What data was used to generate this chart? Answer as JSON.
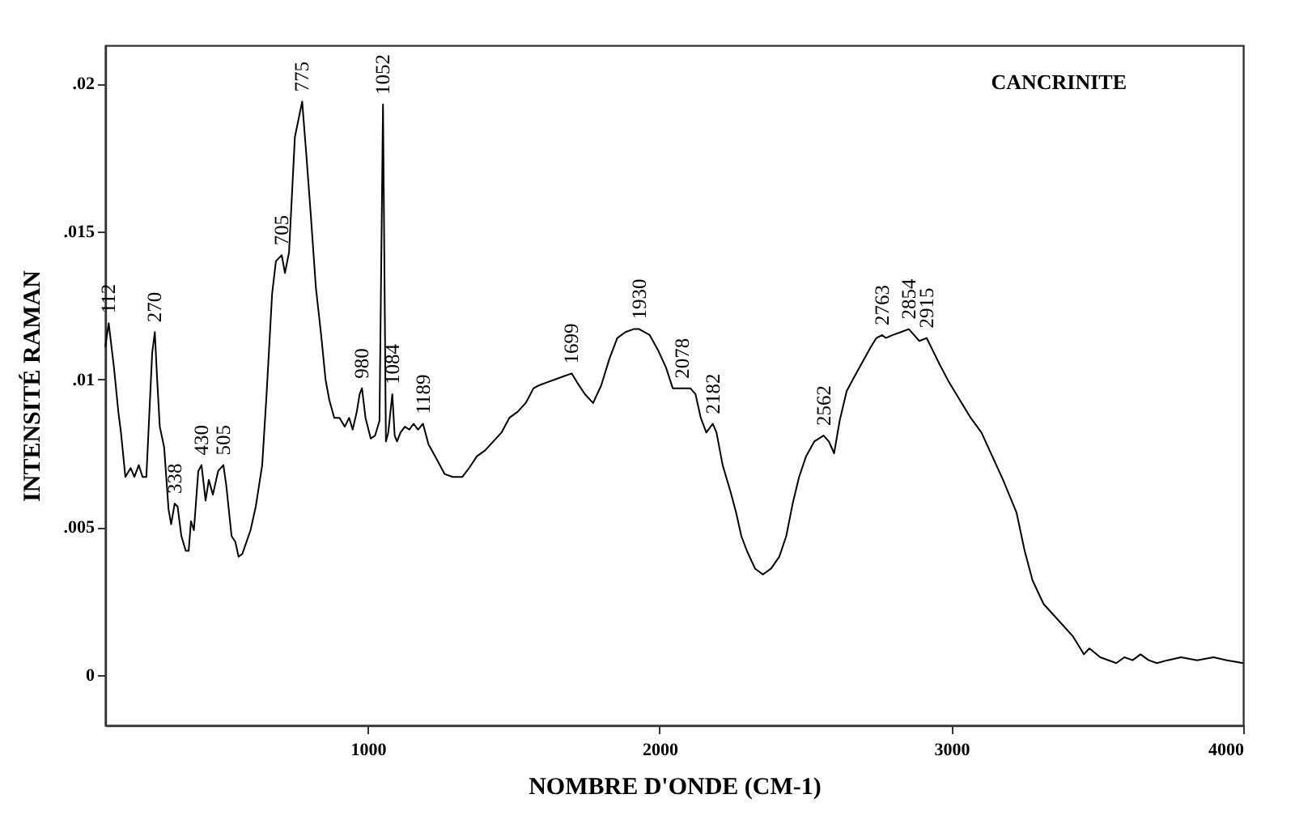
{
  "chart_data": {
    "type": "line",
    "title": "CANCRINITE",
    "xlabel": "NOMBRE D'ONDE (CM-1)",
    "ylabel": "INTENSITÉ RAMAN",
    "xlim": [
      100,
      4000
    ],
    "xticks": [
      1000,
      2000,
      3000,
      4000
    ],
    "ylim": [
      -0.0017,
      0.0213
    ],
    "yticks": [
      0,
      {
        "value": 0.005,
        "label": ".005"
      },
      {
        "value": 0.01,
        "label": ".01"
      },
      {
        "value": 0.015,
        "label": ".015"
      },
      {
        "value": 0.02,
        "label": ".02"
      }
    ],
    "grid": false,
    "x": [
      100,
      112,
      130,
      145,
      154,
      169,
      187,
      200,
      215,
      228,
      241,
      261,
      270,
      278,
      287,
      302,
      317,
      326,
      338,
      348,
      361,
      376,
      386,
      394,
      404,
      419,
      430,
      444,
      455,
      469,
      487,
      505,
      515,
      533,
      546,
      557,
      570,
      598,
      616,
      638,
      653,
      672,
      685,
      705,
      716,
      730,
      750,
      775,
      790,
      805,
      822,
      840,
      855,
      868,
      885,
      903,
      921,
      936,
      948,
      962,
      972,
      980,
      992,
      1010,
      1025,
      1040,
      1052,
      1062,
      1070,
      1084,
      1092,
      1100,
      1112,
      1127,
      1142,
      1157,
      1172,
      1189,
      1208,
      1236,
      1263,
      1291,
      1324,
      1347,
      1374,
      1402,
      1430,
      1458,
      1485,
      1513,
      1541,
      1568,
      1587,
      1614,
      1642,
      1670,
      1699,
      1717,
      1744,
      1772,
      1800,
      1828,
      1855,
      1883,
      1911,
      1930,
      1966,
      1994,
      2022,
      2045,
      2058,
      2078,
      2105,
      2123,
      2141,
      2160,
      2182,
      2195,
      2216,
      2243,
      2262,
      2280,
      2299,
      2327,
      2354,
      2382,
      2410,
      2434,
      2456,
      2478,
      2502,
      2530,
      2562,
      2580,
      2598,
      2617,
      2641,
      2668,
      2696,
      2724,
      2743,
      2763,
      2775,
      2799,
      2827,
      2854,
      2872,
      2890,
      2915,
      2935,
      2960,
      2992,
      3029,
      3066,
      3103,
      3140,
      3177,
      3223,
      3251,
      3278,
      3316,
      3362,
      3417,
      3454,
      3473,
      3510,
      3565,
      3593,
      3621,
      3648,
      3676,
      3704,
      3741,
      3787,
      3842,
      3898,
      3944,
      4000
    ],
    "series": [
      {
        "color": "#000000",
        "values": [
          0.0111,
          0.0119,
          0.0104,
          0.0089,
          0.0082,
          0.0067,
          0.007,
          0.0067,
          0.0071,
          0.0067,
          0.0067,
          0.0109,
          0.0116,
          0.01,
          0.0084,
          0.0077,
          0.0056,
          0.0051,
          0.0058,
          0.0057,
          0.0047,
          0.0042,
          0.0042,
          0.0052,
          0.0049,
          0.0069,
          0.0071,
          0.0059,
          0.0066,
          0.0061,
          0.0069,
          0.0071,
          0.0064,
          0.0047,
          0.0045,
          0.004,
          0.0041,
          0.0049,
          0.0057,
          0.0071,
          0.0095,
          0.0129,
          0.014,
          0.0142,
          0.0136,
          0.0143,
          0.0182,
          0.0194,
          0.0175,
          0.0155,
          0.0131,
          0.0115,
          0.01,
          0.0093,
          0.0087,
          0.0087,
          0.0084,
          0.0087,
          0.0083,
          0.0089,
          0.0095,
          0.0097,
          0.0087,
          0.008,
          0.0081,
          0.0086,
          0.0193,
          0.0079,
          0.0082,
          0.0095,
          0.0081,
          0.0079,
          0.0082,
          0.0084,
          0.0083,
          0.0085,
          0.0083,
          0.0085,
          0.0078,
          0.0073,
          0.0068,
          0.0067,
          0.0067,
          0.007,
          0.0074,
          0.0076,
          0.0079,
          0.0082,
          0.0087,
          0.0089,
          0.0092,
          0.0097,
          0.0098,
          0.0099,
          0.01,
          0.0101,
          0.0102,
          0.0099,
          0.0095,
          0.0092,
          0.0098,
          0.0107,
          0.0114,
          0.0116,
          0.0117,
          0.0117,
          0.0115,
          0.011,
          0.0104,
          0.0097,
          0.0097,
          0.0097,
          0.0097,
          0.0095,
          0.0087,
          0.0082,
          0.0085,
          0.0082,
          0.0071,
          0.0062,
          0.0055,
          0.0047,
          0.0042,
          0.0036,
          0.0034,
          0.0036,
          0.004,
          0.0047,
          0.0058,
          0.0067,
          0.0074,
          0.0079,
          0.0081,
          0.0079,
          0.0075,
          0.0086,
          0.0096,
          0.0101,
          0.0106,
          0.0111,
          0.0114,
          0.0115,
          0.0114,
          0.0115,
          0.0116,
          0.0117,
          0.0115,
          0.0113,
          0.0114,
          0.011,
          0.0105,
          0.0099,
          0.0093,
          0.0087,
          0.0082,
          0.0074,
          0.0066,
          0.0055,
          0.0042,
          0.0032,
          0.0024,
          0.0019,
          0.0013,
          0.0007,
          0.0009,
          0.0006,
          0.0004,
          0.0006,
          0.0005,
          0.0007,
          0.0005,
          0.0004,
          0.0005,
          0.0006,
          0.0005,
          0.0006,
          0.0005,
          0.0004
        ]
      }
    ],
    "annotations": [
      {
        "text": "112",
        "x": 112,
        "y": 0.0119
      },
      {
        "text": "270",
        "x": 270,
        "y": 0.0116
      },
      {
        "text": "338",
        "x": 338,
        "y": 0.0058
      },
      {
        "text": "430",
        "x": 430,
        "y": 0.0071
      },
      {
        "text": "505",
        "x": 505,
        "y": 0.0071
      },
      {
        "text": "705",
        "x": 705,
        "y": 0.0142
      },
      {
        "text": "775",
        "x": 775,
        "y": 0.0194
      },
      {
        "text": "980",
        "x": 980,
        "y": 0.0097
      },
      {
        "text": "1052",
        "x": 1052,
        "y": 0.0193
      },
      {
        "text": "1084",
        "x": 1084,
        "y": 0.0095
      },
      {
        "text": "1189",
        "x": 1189,
        "y": 0.0085
      },
      {
        "text": "1699",
        "x": 1699,
        "y": 0.0102
      },
      {
        "text": "1930",
        "x": 1930,
        "y": 0.0117
      },
      {
        "text": "2078",
        "x": 2078,
        "y": 0.0097
      },
      {
        "text": "2182",
        "x": 2182,
        "y": 0.0085
      },
      {
        "text": "2562",
        "x": 2562,
        "y": 0.0081
      },
      {
        "text": "2763",
        "x": 2763,
        "y": 0.0115
      },
      {
        "text": "2854",
        "x": 2854,
        "y": 0.0117
      },
      {
        "text": "2915",
        "x": 2915,
        "y": 0.0114
      }
    ]
  }
}
